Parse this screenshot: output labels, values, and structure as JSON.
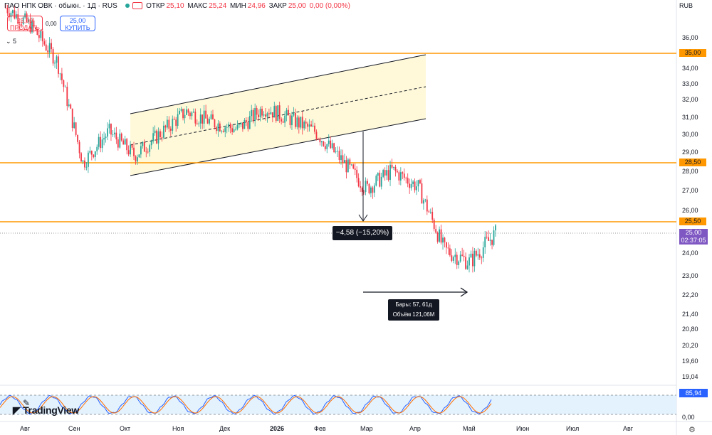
{
  "header": {
    "title": "ПАО НПК ОВК · обыкн. · 1Д · RUS",
    "open_label": "ОТКР",
    "open_value": "25,10",
    "high_label": "МАКС",
    "high_value": "25,24",
    "low_label": "МИН",
    "low_value": "24,96",
    "close_label": "ЗАКР",
    "close_value": "25,00",
    "change": "0,00 (0,00%)"
  },
  "trade": {
    "sell_price": "25,00",
    "sell_label": "ПРОДАТЬ",
    "spread": "0,00",
    "buy_price": "25,00",
    "buy_label": "КУПИТЬ"
  },
  "indicator_count": "5",
  "currency": "RUB",
  "logo_text": "TradingView",
  "price_axis": [
    "36,00",
    "35,00",
    "34,00",
    "33,00",
    "32,00",
    "31,00",
    "30,00",
    "29,00",
    "28,50",
    "28,00",
    "27,00",
    "26,00",
    "25,50",
    "25,00",
    "24,00",
    "23,00",
    "22,20",
    "21,40",
    "20,80",
    "20,20",
    "19,60",
    "19,04",
    "0,00"
  ],
  "time_axis": [
    "Авг",
    "Сен",
    "Окт",
    "Ноя",
    "Дек",
    "2026",
    "Фев",
    "Мар",
    "Апр",
    "Май",
    "Июн",
    "Июл",
    "Авг"
  ],
  "horizontal_levels": [
    "35,00",
    "28,50",
    "25,50"
  ],
  "current_price": {
    "value": "25,00",
    "countdown": "02:37:05"
  },
  "measure_price": "−4,58 (−15,20%)",
  "measure_bars": "Бары: 57, 61д",
  "measure_volume": "Объём 121,06M",
  "stoch_value": "85,94",
  "colors": {
    "up": "#26a69a",
    "down": "#f23645",
    "level": "#ff9800",
    "current": "#7e57c2",
    "stoch": "#2962ff"
  },
  "chart_data": {
    "type": "candlestick",
    "x": [
      "Авг",
      "Сен",
      "Окт",
      "Ноя",
      "Дек",
      "2026",
      "Фев",
      "Мар",
      "Апр",
      "Май",
      "Июн",
      "Июл",
      "Авг"
    ],
    "close_series": [
      {
        "date": "2025-08",
        "close": 37.2
      },
      {
        "date": "2025-09",
        "close": 36.2
      },
      {
        "date": "2025-09-25",
        "close": 34.3
      },
      {
        "date": "2025-10-05",
        "close": 28.8
      },
      {
        "date": "2025-10-20",
        "close": 30.5
      },
      {
        "date": "2025-11-05",
        "close": 29.2
      },
      {
        "date": "2025-11-20",
        "close": 30.4
      },
      {
        "date": "2025-12-05",
        "close": 31.6
      },
      {
        "date": "2025-12-20",
        "close": 31.0
      },
      {
        "date": "2026-01-05",
        "close": 30.6
      },
      {
        "date": "2026-01-20",
        "close": 31.8
      },
      {
        "date": "2026-02-05",
        "close": 31.2
      },
      {
        "date": "2026-02-20",
        "close": 30.5
      },
      {
        "date": "2026-03-05",
        "close": 29.0
      },
      {
        "date": "2026-03-20",
        "close": 27.4
      },
      {
        "date": "2026-04-05",
        "close": 28.4
      },
      {
        "date": "2026-04-20",
        "close": 27.5
      },
      {
        "date": "2026-05-01",
        "close": 24.2
      },
      {
        "date": "2026-05-10",
        "close": 23.6
      },
      {
        "date": "2026-05-20",
        "close": 25.0
      }
    ],
    "levels": [
      35.0,
      28.5,
      25.5
    ],
    "stochastic_band": [
      20,
      80
    ],
    "stochastic_last": 85.94
  }
}
